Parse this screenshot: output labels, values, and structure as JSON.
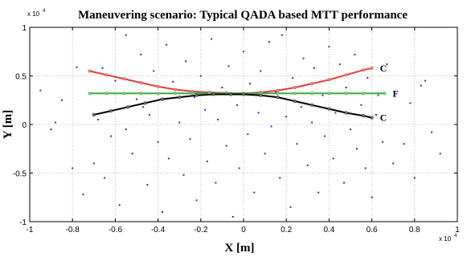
{
  "chart_data": {
    "type": "scatter",
    "title": "Maneuvering scenario: Typical QADA based MTT performance",
    "xlabel": "X [m]",
    "ylabel": "Y [m]",
    "x_exponent_label": "x 10",
    "x_exponent_power": "4",
    "y_exponent_label": "x 10",
    "y_exponent_power": "4",
    "xlim": [
      -1,
      1
    ],
    "ylim": [
      -1,
      1
    ],
    "xticks": [
      -1,
      -0.8,
      -0.6,
      -0.4,
      -0.2,
      0,
      0.2,
      0.4,
      0.6,
      0.8,
      1
    ],
    "yticks": [
      -1,
      -0.5,
      0,
      0.5,
      1
    ],
    "xtick_labels": [
      "-1",
      "-0.8",
      "-0.6",
      "-0.4",
      "-0.2",
      "0",
      "0.2",
      "0.4",
      "0.6",
      "0.8",
      "1"
    ],
    "ytick_labels": [
      "-1",
      "-0.5",
      "0",
      "0.5",
      "1"
    ],
    "grid": true,
    "series": [
      {
        "label": "C",
        "color": "#e03c3c",
        "marker_color": "#e88a8a",
        "x": [
          -0.72,
          -0.64,
          -0.56,
          -0.48,
          -0.4,
          -0.32,
          -0.24,
          -0.16,
          -0.08,
          0.0,
          0.08,
          0.16,
          0.24,
          0.32,
          0.4,
          0.48,
          0.56,
          0.6
        ],
        "y": [
          0.55,
          0.51,
          0.47,
          0.43,
          0.39,
          0.36,
          0.34,
          0.33,
          0.325,
          0.32,
          0.33,
          0.35,
          0.38,
          0.42,
          0.46,
          0.51,
          0.56,
          0.58
        ]
      },
      {
        "label": "F",
        "color": "#3caa3c",
        "marker_color": "#7fd07f",
        "x": [
          -0.72,
          -0.64,
          -0.56,
          -0.48,
          -0.4,
          -0.32,
          -0.24,
          -0.16,
          -0.08,
          0.0,
          0.08,
          0.16,
          0.24,
          0.32,
          0.4,
          0.48,
          0.56,
          0.66
        ],
        "y": [
          0.32,
          0.32,
          0.32,
          0.32,
          0.32,
          0.32,
          0.32,
          0.32,
          0.32,
          0.32,
          0.32,
          0.32,
          0.32,
          0.32,
          0.32,
          0.32,
          0.32,
          0.32
        ]
      },
      {
        "label": "C",
        "color": "#000000",
        "marker_color": "#7a7a7a",
        "x": [
          -0.7,
          -0.62,
          -0.54,
          -0.46,
          -0.38,
          -0.3,
          -0.22,
          -0.14,
          -0.06,
          0.0,
          0.08,
          0.16,
          0.24,
          0.32,
          0.4,
          0.48,
          0.56,
          0.6
        ],
        "y": [
          0.1,
          0.14,
          0.18,
          0.22,
          0.26,
          0.28,
          0.3,
          0.31,
          0.31,
          0.31,
          0.3,
          0.28,
          0.24,
          0.2,
          0.16,
          0.12,
          0.09,
          0.07
        ]
      }
    ],
    "clutter": {
      "color": "#3030c0",
      "points": [
        [
          -0.95,
          0.35
        ],
        [
          -0.9,
          -0.05
        ],
        [
          -0.88,
          0.02
        ],
        [
          -0.85,
          0.25
        ],
        [
          -0.8,
          -0.45
        ],
        [
          -0.78,
          0.59
        ],
        [
          -0.75,
          -0.72
        ],
        [
          -0.72,
          0.32
        ],
        [
          -0.7,
          -0.4
        ],
        [
          -0.68,
          0.05
        ],
        [
          -0.66,
          0.58
        ],
        [
          -0.65,
          -0.55
        ],
        [
          -0.62,
          -0.12
        ],
        [
          -0.6,
          0.45
        ],
        [
          -0.58,
          -0.83
        ],
        [
          -0.55,
          0.92
        ],
        [
          -0.55,
          -0.05
        ],
        [
          -0.52,
          -0.3
        ],
        [
          -0.5,
          0.26
        ],
        [
          -0.48,
          0.72
        ],
        [
          -0.47,
          0.18
        ],
        [
          -0.45,
          -0.62
        ],
        [
          -0.44,
          0.1
        ],
        [
          -0.42,
          0.55
        ],
        [
          -0.4,
          -0.18
        ],
        [
          -0.38,
          -0.9
        ],
        [
          -0.36,
          0.82
        ],
        [
          -0.35,
          -0.35
        ],
        [
          -0.33,
          0.44
        ],
        [
          -0.3,
          0.02
        ],
        [
          -0.28,
          -0.52
        ],
        [
          -0.27,
          0.65
        ],
        [
          -0.25,
          -0.15
        ],
        [
          -0.23,
          0.28
        ],
        [
          -0.22,
          -0.78
        ],
        [
          -0.2,
          0.5
        ],
        [
          -0.18,
          0.15
        ],
        [
          -0.17,
          -0.38
        ],
        [
          -0.15,
          0.88
        ],
        [
          -0.13,
          -0.6
        ],
        [
          -0.12,
          0.05
        ],
        [
          -0.1,
          0.38
        ],
        [
          -0.08,
          -0.22
        ],
        [
          -0.07,
          0.6
        ],
        [
          -0.05,
          -0.95
        ],
        [
          -0.03,
          0.2
        ],
        [
          -0.02,
          -0.45
        ],
        [
          0.0,
          0.75
        ],
        [
          0.02,
          -0.1
        ],
        [
          0.03,
          0.42
        ],
        [
          0.05,
          -0.7
        ],
        [
          0.07,
          0.12
        ],
        [
          0.08,
          0.55
        ],
        [
          0.1,
          -0.3
        ],
        [
          0.12,
          0.85
        ],
        [
          0.13,
          -0.02
        ],
        [
          0.15,
          0.33
        ],
        [
          0.17,
          -0.55
        ],
        [
          0.18,
          0.92
        ],
        [
          0.2,
          0.08
        ],
        [
          0.22,
          -0.85
        ],
        [
          0.23,
          0.48
        ],
        [
          0.25,
          -0.2
        ],
        [
          0.27,
          0.18
        ],
        [
          0.28,
          0.68
        ],
        [
          0.3,
          -0.42
        ],
        [
          0.32,
          0.02
        ],
        [
          0.33,
          0.58
        ],
        [
          0.35,
          -0.7
        ],
        [
          0.37,
          0.3
        ],
        [
          0.38,
          -0.12
        ],
        [
          0.4,
          0.8
        ],
        [
          0.42,
          -0.35
        ],
        [
          0.43,
          0.12
        ],
        [
          0.45,
          0.62
        ],
        [
          0.47,
          -0.6
        ],
        [
          0.48,
          0.38
        ],
        [
          0.5,
          -0.05
        ],
        [
          0.52,
          0.72
        ],
        [
          0.53,
          -0.25
        ],
        [
          0.55,
          0.2
        ],
        [
          0.57,
          -0.45
        ],
        [
          0.58,
          0.48
        ],
        [
          0.6,
          -0.75
        ],
        [
          0.62,
          0.1
        ],
        [
          0.63,
          0.3
        ],
        [
          0.65,
          -0.18
        ],
        [
          0.67,
          0.62
        ],
        [
          0.7,
          -0.4
        ],
        [
          0.75,
          -0.2
        ],
        [
          0.78,
          0.22
        ],
        [
          0.8,
          -0.55
        ],
        [
          0.83,
          0.4
        ],
        [
          0.85,
          0.45
        ],
        [
          0.88,
          -0.08
        ],
        [
          0.92,
          -0.3
        ]
      ]
    }
  }
}
